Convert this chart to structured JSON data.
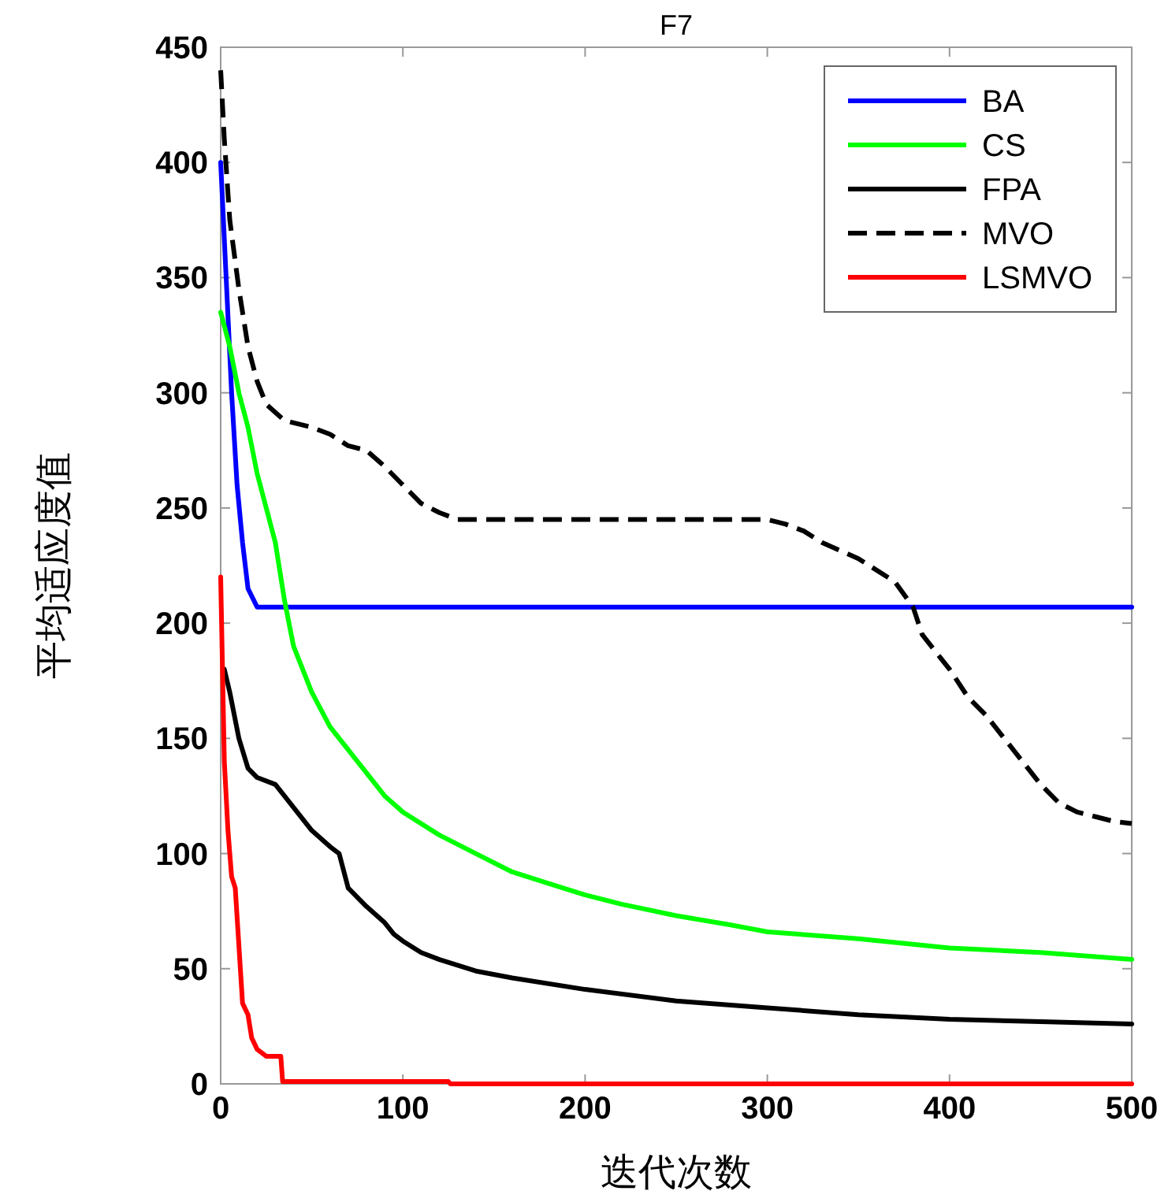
{
  "chart_data": {
    "type": "line",
    "title": "F7",
    "xlabel": "迭代次数",
    "ylabel": "平均适应度值",
    "xlim": [
      0,
      500
    ],
    "ylim": [
      0,
      450
    ],
    "xticks": [
      0,
      100,
      200,
      300,
      400,
      500
    ],
    "yticks": [
      0,
      50,
      100,
      150,
      200,
      250,
      300,
      350,
      400,
      450
    ],
    "grid": false,
    "legend": "top right",
    "marker": "none",
    "series": [
      {
        "name": "BA",
        "color": "#0000ff",
        "line_style": "solid",
        "x": [
          0,
          3,
          6,
          9,
          12,
          15,
          20,
          500
        ],
        "values": [
          400,
          350,
          300,
          260,
          235,
          215,
          207,
          207
        ]
      },
      {
        "name": "CS",
        "color": "#00ff00",
        "line_style": "solid",
        "x": [
          0,
          5,
          10,
          15,
          20,
          30,
          35,
          40,
          50,
          60,
          70,
          80,
          90,
          100,
          120,
          140,
          160,
          180,
          200,
          220,
          250,
          280,
          300,
          350,
          400,
          450,
          500
        ],
        "values": [
          335,
          320,
          300,
          285,
          265,
          235,
          210,
          190,
          170,
          155,
          145,
          135,
          125,
          118,
          108,
          100,
          92,
          87,
          82,
          78,
          73,
          69,
          66,
          63,
          59,
          57,
          54
        ]
      },
      {
        "name": "FPA",
        "color": "#000000",
        "line_style": "solid",
        "x": [
          2,
          5,
          10,
          15,
          20,
          30,
          40,
          50,
          60,
          65,
          70,
          80,
          90,
          95,
          100,
          110,
          120,
          140,
          160,
          200,
          250,
          300,
          350,
          400,
          450,
          500
        ],
        "values": [
          180,
          170,
          150,
          137,
          133,
          130,
          120,
          110,
          103,
          100,
          85,
          77,
          70,
          65,
          62,
          57,
          54,
          49,
          46,
          41,
          36,
          33,
          30,
          28,
          27,
          26
        ]
      },
      {
        "name": "MVO",
        "color": "#000000",
        "line_style": "dashed",
        "x": [
          0,
          2,
          5,
          10,
          15,
          20,
          25,
          35,
          50,
          60,
          70,
          80,
          90,
          100,
          110,
          120,
          130,
          300,
          310,
          320,
          330,
          350,
          370,
          380,
          385,
          400,
          410,
          420,
          440,
          450,
          460,
          470,
          480,
          490,
          500
        ],
        "values": [
          440,
          410,
          375,
          345,
          320,
          305,
          295,
          288,
          285,
          282,
          277,
          275,
          268,
          260,
          252,
          248,
          245,
          245,
          243,
          240,
          235,
          228,
          218,
          207,
          195,
          180,
          168,
          160,
          140,
          130,
          122,
          118,
          116,
          114,
          113
        ]
      },
      {
        "name": "LSMVO",
        "color": "#ff0000",
        "line_style": "solid",
        "x": [
          0,
          1,
          2,
          4,
          6,
          8,
          10,
          12,
          15,
          17,
          20,
          25,
          33,
          34,
          125,
          126,
          500
        ],
        "values": [
          220,
          180,
          140,
          110,
          90,
          85,
          60,
          35,
          30,
          20,
          15,
          12,
          12,
          1,
          1,
          0,
          0
        ]
      }
    ]
  }
}
